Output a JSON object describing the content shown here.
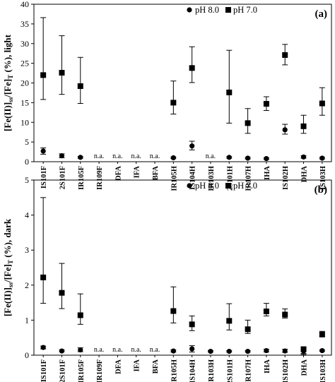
{
  "chart_data": [
    {
      "type": "scatter",
      "panel_label": "(a)",
      "ylabel_main": "[Fe(II)]",
      "ylabel_sub1": "ss",
      "ylabel_mid": "/[Fe]",
      "ylabel_sub2": "T",
      "ylabel_tail": " (%), light",
      "ylim": [
        0,
        40
      ],
      "yticks": [
        "0",
        "5",
        "10",
        "15",
        "20",
        "25",
        "30",
        "35",
        "40"
      ],
      "categories": [
        "IS101F",
        "2S101F",
        "IR105F",
        "IR109F",
        "DFA",
        "IFA",
        "BFA",
        "IR105H",
        "IS104H",
        "IR103H",
        "2S101H",
        "IR107H",
        "IHA",
        "IS102H",
        "DHA",
        "IS103H"
      ],
      "legend": [
        "pH 8.0",
        "pH 7.0"
      ],
      "na_label": "n.a.",
      "na_categories": [
        "IR109F",
        "DFA",
        "IFA",
        "BFA",
        "IR103H"
      ],
      "series": [
        {
          "name": "pH 8.0",
          "marker": "circle",
          "values": [
            2.7,
            1.5,
            1.1,
            null,
            null,
            null,
            null,
            1.0,
            4.0,
            null,
            1.1,
            0.9,
            0.8,
            8.1,
            1.2,
            0.9
          ],
          "err_low": [
            1.9,
            1.0,
            0.9,
            null,
            null,
            null,
            null,
            0.8,
            3.0,
            null,
            0.9,
            0.7,
            0.6,
            7.0,
            0.9,
            0.7
          ],
          "err_high": [
            3.5,
            2.0,
            1.3,
            null,
            null,
            null,
            null,
            1.2,
            5.2,
            null,
            1.3,
            1.1,
            1.0,
            9.5,
            1.5,
            1.1
          ]
        },
        {
          "name": "pH 7.0",
          "marker": "square",
          "values": [
            22.0,
            22.6,
            19.2,
            null,
            null,
            null,
            null,
            15.0,
            23.8,
            null,
            17.6,
            9.8,
            14.7,
            27.1,
            9.0,
            14.8
          ],
          "err_low": [
            15.8,
            17.1,
            14.8,
            null,
            null,
            null,
            null,
            12.1,
            20.1,
            null,
            9.8,
            7.2,
            13.0,
            24.6,
            7.2,
            11.8
          ],
          "err_high": [
            36.6,
            32.0,
            26.5,
            null,
            null,
            null,
            null,
            20.5,
            29.2,
            null,
            28.3,
            13.5,
            16.5,
            29.8,
            11.8,
            18.8
          ]
        }
      ]
    },
    {
      "type": "scatter",
      "panel_label": "(b)",
      "ylabel_main": "[Fe(II)]",
      "ylabel_sub1": "ss",
      "ylabel_mid": "/[Fe]",
      "ylabel_sub2": "T",
      "ylabel_tail": " (%), dark",
      "ylim": [
        0,
        5
      ],
      "yticks": [
        "0",
        "1",
        "2",
        "3",
        "4",
        "5"
      ],
      "categories": [
        "IS101F",
        "2S101F",
        "IR105F",
        "IR109F",
        "DFA",
        "IFA",
        "BFA",
        "IR105H",
        "IS104H",
        "IR103H",
        "2S101H",
        "IR107H",
        "IHA",
        "IS102H",
        "DHA",
        "IS103H"
      ],
      "legend": [
        "pH 8.0",
        "pH 7.0"
      ],
      "na_label": "n.a.",
      "na_categories": [
        "IR109F",
        "DFA",
        "IFA",
        "BFA"
      ],
      "series": [
        {
          "name": "pH 8.0",
          "marker": "circle",
          "values": [
            0.22,
            0.12,
            0.15,
            null,
            null,
            null,
            null,
            0.12,
            0.18,
            0.11,
            0.11,
            0.11,
            0.13,
            0.12,
            0.12,
            0.13
          ],
          "err_low": [
            0.18,
            0.1,
            0.1,
            null,
            null,
            null,
            null,
            0.09,
            0.09,
            0.09,
            0.09,
            0.09,
            0.09,
            0.08,
            0.02,
            0.11
          ],
          "err_high": [
            0.26,
            0.15,
            0.21,
            null,
            null,
            null,
            null,
            0.15,
            0.27,
            0.13,
            0.13,
            0.13,
            0.17,
            0.17,
            0.24,
            0.15
          ]
        },
        {
          "name": "pH 7.0",
          "marker": "square",
          "values": [
            2.22,
            1.78,
            1.14,
            null,
            null,
            null,
            null,
            1.26,
            0.88,
            null,
            0.98,
            0.74,
            1.25,
            1.16,
            0.17,
            0.59
          ],
          "err_low": [
            1.48,
            1.33,
            0.88,
            null,
            null,
            null,
            null,
            0.92,
            0.7,
            null,
            0.72,
            0.62,
            1.12,
            1.06,
            0.05,
            0.53
          ],
          "err_high": [
            4.5,
            2.62,
            1.75,
            null,
            null,
            null,
            null,
            1.95,
            1.12,
            null,
            1.47,
            1.0,
            1.48,
            1.32,
            0.22,
            0.68
          ]
        }
      ]
    }
  ]
}
